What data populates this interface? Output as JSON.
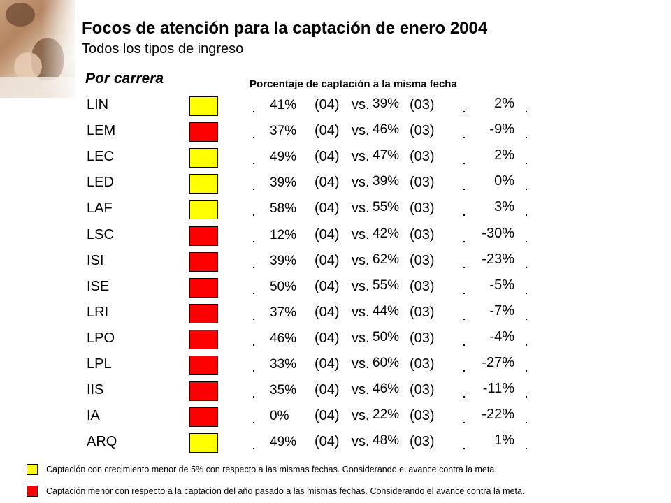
{
  "header": {
    "title": "Focos de atención para la captación de enero 2004",
    "subtitle": "Todos los tipos de ingreso"
  },
  "table": {
    "section_title": "Por carrera",
    "column_header": "Porcentaje de captación a la misma fecha",
    "tag_04": "(04)",
    "vs": "vs.",
    "tag_03": "(03)",
    "status_colors": {
      "yellow": "#ffff00",
      "red": "#ff0000"
    },
    "rows": [
      {
        "career": "LIN",
        "status": "yellow",
        "pct_04": "41%",
        "pct_03": "39%",
        "diff": "2%"
      },
      {
        "career": "LEM",
        "status": "red",
        "pct_04": "37%",
        "pct_03": "46%",
        "diff": "-9%"
      },
      {
        "career": "LEC",
        "status": "yellow",
        "pct_04": "49%",
        "pct_03": "47%",
        "diff": "2%"
      },
      {
        "career": "LED",
        "status": "yellow",
        "pct_04": "39%",
        "pct_03": "39%",
        "diff": "0%"
      },
      {
        "career": "LAF",
        "status": "yellow",
        "pct_04": "58%",
        "pct_03": "55%",
        "diff": "3%"
      },
      {
        "career": "LSC",
        "status": "red",
        "pct_04": "12%",
        "pct_03": "42%",
        "diff": "-30%"
      },
      {
        "career": "ISI",
        "status": "red",
        "pct_04": "39%",
        "pct_03": "62%",
        "diff": "-23%"
      },
      {
        "career": "ISE",
        "status": "red",
        "pct_04": "50%",
        "pct_03": "55%",
        "diff": "-5%"
      },
      {
        "career": "LRI",
        "status": "red",
        "pct_04": "37%",
        "pct_03": "44%",
        "diff": "-7%"
      },
      {
        "career": "LPO",
        "status": "red",
        "pct_04": "46%",
        "pct_03": "50%",
        "diff": "-4%"
      },
      {
        "career": "LPL",
        "status": "red",
        "pct_04": "33%",
        "pct_03": "60%",
        "diff": "-27%"
      },
      {
        "career": "IIS",
        "status": "red",
        "pct_04": "35%",
        "pct_03": "46%",
        "diff": "-11%"
      },
      {
        "career": "IA",
        "status": "red",
        "pct_04": "0%",
        "pct_03": "22%",
        "diff": "-22%"
      },
      {
        "career": "ARQ",
        "status": "yellow",
        "pct_04": "49%",
        "pct_03": "48%",
        "diff": "1%"
      }
    ]
  },
  "legend": [
    {
      "color": "yellow",
      "text": "Captación con crecimiento menor de 5% con respecto a las mismas fechas. Considerando el avance contra la meta."
    },
    {
      "color": "red",
      "text": "Captación menor con respecto a la captación del año pasado a las mismas fechas. Considerando el avance contra la meta."
    }
  ]
}
